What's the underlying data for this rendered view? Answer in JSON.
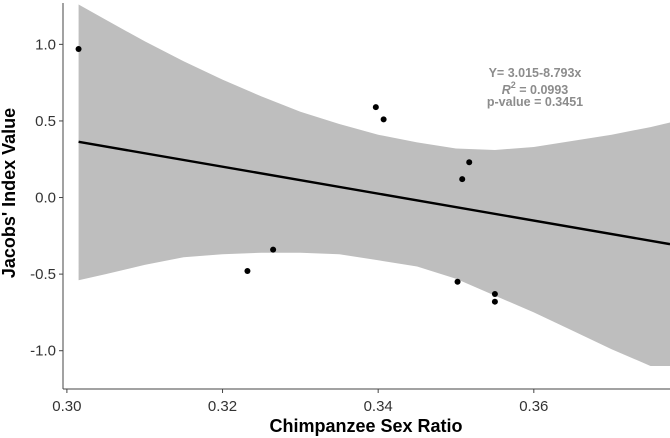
{
  "chart_data": {
    "type": "scatter",
    "xlabel": "Chimpanzee Sex Ratio",
    "ylabel": "Jacobs' Index Value",
    "xlim": [
      0.2995,
      0.3775
    ],
    "ylim": [
      -1.25,
      1.27
    ],
    "x_ticks": [
      "0.30",
      "0.32",
      "0.34",
      "0.36"
    ],
    "y_ticks": [
      "1.0",
      "0.5",
      "0.0",
      "-0.5",
      "-1.0"
    ],
    "points": [
      {
        "x": 0.3015,
        "y": 0.97
      },
      {
        "x": 0.3232,
        "y": -0.48
      },
      {
        "x": 0.3265,
        "y": -0.34
      },
      {
        "x": 0.3397,
        "y": 0.59
      },
      {
        "x": 0.3407,
        "y": 0.51
      },
      {
        "x": 0.3502,
        "y": -0.55
      },
      {
        "x": 0.3508,
        "y": 0.12
      },
      {
        "x": 0.3517,
        "y": 0.23
      },
      {
        "x": 0.355,
        "y": -0.63
      },
      {
        "x": 0.355,
        "y": -0.68
      }
    ],
    "fit_line": {
      "intercept": 3.015,
      "slope": -8.793
    },
    "confidence_band": {
      "x": [
        0.3015,
        0.305,
        0.31,
        0.315,
        0.32,
        0.325,
        0.33,
        0.335,
        0.34,
        0.345,
        0.35,
        0.355,
        0.36,
        0.365,
        0.37,
        0.375,
        0.3775
      ],
      "upper": [
        1.26,
        1.16,
        1.02,
        0.89,
        0.77,
        0.66,
        0.56,
        0.48,
        0.41,
        0.36,
        0.32,
        0.31,
        0.33,
        0.37,
        0.41,
        0.46,
        0.49
      ],
      "lower": [
        -0.54,
        -0.5,
        -0.44,
        -0.39,
        -0.37,
        -0.36,
        -0.36,
        -0.37,
        -0.41,
        -0.45,
        -0.53,
        -0.64,
        -0.75,
        -0.87,
        -0.99,
        -1.1,
        -1.1
      ]
    },
    "grid": false,
    "colors": {
      "band": "#bebebe",
      "line": "#000000",
      "points": "#000000",
      "annotation": "#8c8c8c"
    },
    "annotation": {
      "equation": "Y= 3.015-8.793x",
      "r2_prefix": "R",
      "r2_sup": "2",
      "r2_value": " = 0.0993",
      "pvalue": "p-value = 0.3451"
    }
  }
}
